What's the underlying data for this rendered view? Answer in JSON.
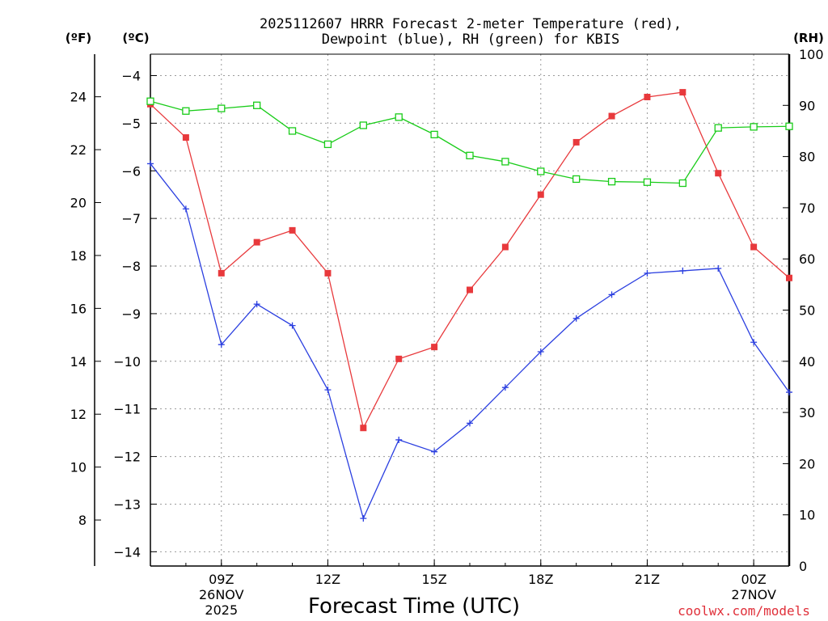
{
  "chart_data": {
    "type": "line",
    "title_line1": "2025112607 HRRR Forecast 2-meter Temperature (red),",
    "title_line2": "Dewpoint (blue), RH (green) for KBIS",
    "xlabel": "Forecast Time (UTC)",
    "credit": "coolwx.com/models",
    "units": {
      "fahrenheit": "(ºF)",
      "celsius": "(ºC)",
      "rh": "(RH)"
    },
    "x_hours": [
      7,
      8,
      9,
      10,
      11,
      12,
      13,
      14,
      15,
      16,
      17,
      18,
      19,
      20,
      21,
      22,
      23,
      24,
      25
    ],
    "xlim": [
      7,
      25
    ],
    "x_ticks": [
      {
        "hour": 9,
        "label": "09Z",
        "date": "26NOV",
        "year": "2025"
      },
      {
        "hour": 12,
        "label": "12Z"
      },
      {
        "hour": 15,
        "label": "15Z"
      },
      {
        "hour": 18,
        "label": "18Z"
      },
      {
        "hour": 21,
        "label": "21Z"
      },
      {
        "hour": 24,
        "label": "00Z",
        "date": "27NOV"
      }
    ],
    "celsius_axis": {
      "ylim": [
        -14.3,
        -3.55
      ],
      "ticks": [
        -4,
        -5,
        -6,
        -7,
        -8,
        -9,
        -10,
        -11,
        -12,
        -13,
        -14
      ],
      "labels": [
        "−4",
        "−5",
        "−6",
        "−7",
        "−8",
        "−9",
        "−10",
        "−11",
        "−12",
        "−13",
        "−14"
      ]
    },
    "fahrenheit_axis": {
      "ticks": [
        24,
        22,
        20,
        18,
        16,
        14,
        12,
        10,
        8
      ],
      "labels": [
        "24",
        "22",
        "20",
        "18",
        "16",
        "14",
        "12",
        "10",
        "8"
      ]
    },
    "rh_axis": {
      "ylim": [
        0,
        100
      ],
      "ticks": [
        100,
        90,
        80,
        70,
        60,
        50,
        40,
        30,
        20,
        10,
        0
      ],
      "labels": [
        "100",
        "90",
        "80",
        "70",
        "60",
        "50",
        "40",
        "30",
        "20",
        "10",
        "0"
      ]
    },
    "series": [
      {
        "name": "Temperature",
        "axis": "celsius",
        "color": "#e8393c",
        "marker": "filled-square",
        "values": [
          -4.6,
          -5.3,
          -8.15,
          -7.5,
          -7.25,
          -8.15,
          -11.4,
          -9.95,
          -9.7,
          -8.5,
          -7.6,
          -6.5,
          -5.4,
          -4.85,
          -4.45,
          -4.35,
          -6.05,
          -7.6,
          -8.25
        ]
      },
      {
        "name": "Dewpoint",
        "axis": "celsius",
        "color": "#2b3fe0",
        "marker": "plus",
        "values": [
          -5.85,
          -6.8,
          -9.65,
          -8.8,
          -9.25,
          -10.6,
          -13.3,
          -11.65,
          -11.9,
          -11.3,
          -10.55,
          -9.8,
          -9.1,
          -8.6,
          -8.15,
          -8.1,
          -8.05,
          -9.6,
          -10.65
        ]
      },
      {
        "name": "RH",
        "axis": "rh",
        "color": "#19cc19",
        "marker": "open-square",
        "values": [
          90.8,
          88.9,
          89.4,
          90.0,
          85.0,
          82.4,
          86.1,
          87.7,
          84.3,
          80.2,
          79.0,
          77.1,
          75.6,
          75.1,
          75.0,
          74.8,
          85.6,
          85.8,
          85.9
        ]
      }
    ]
  }
}
